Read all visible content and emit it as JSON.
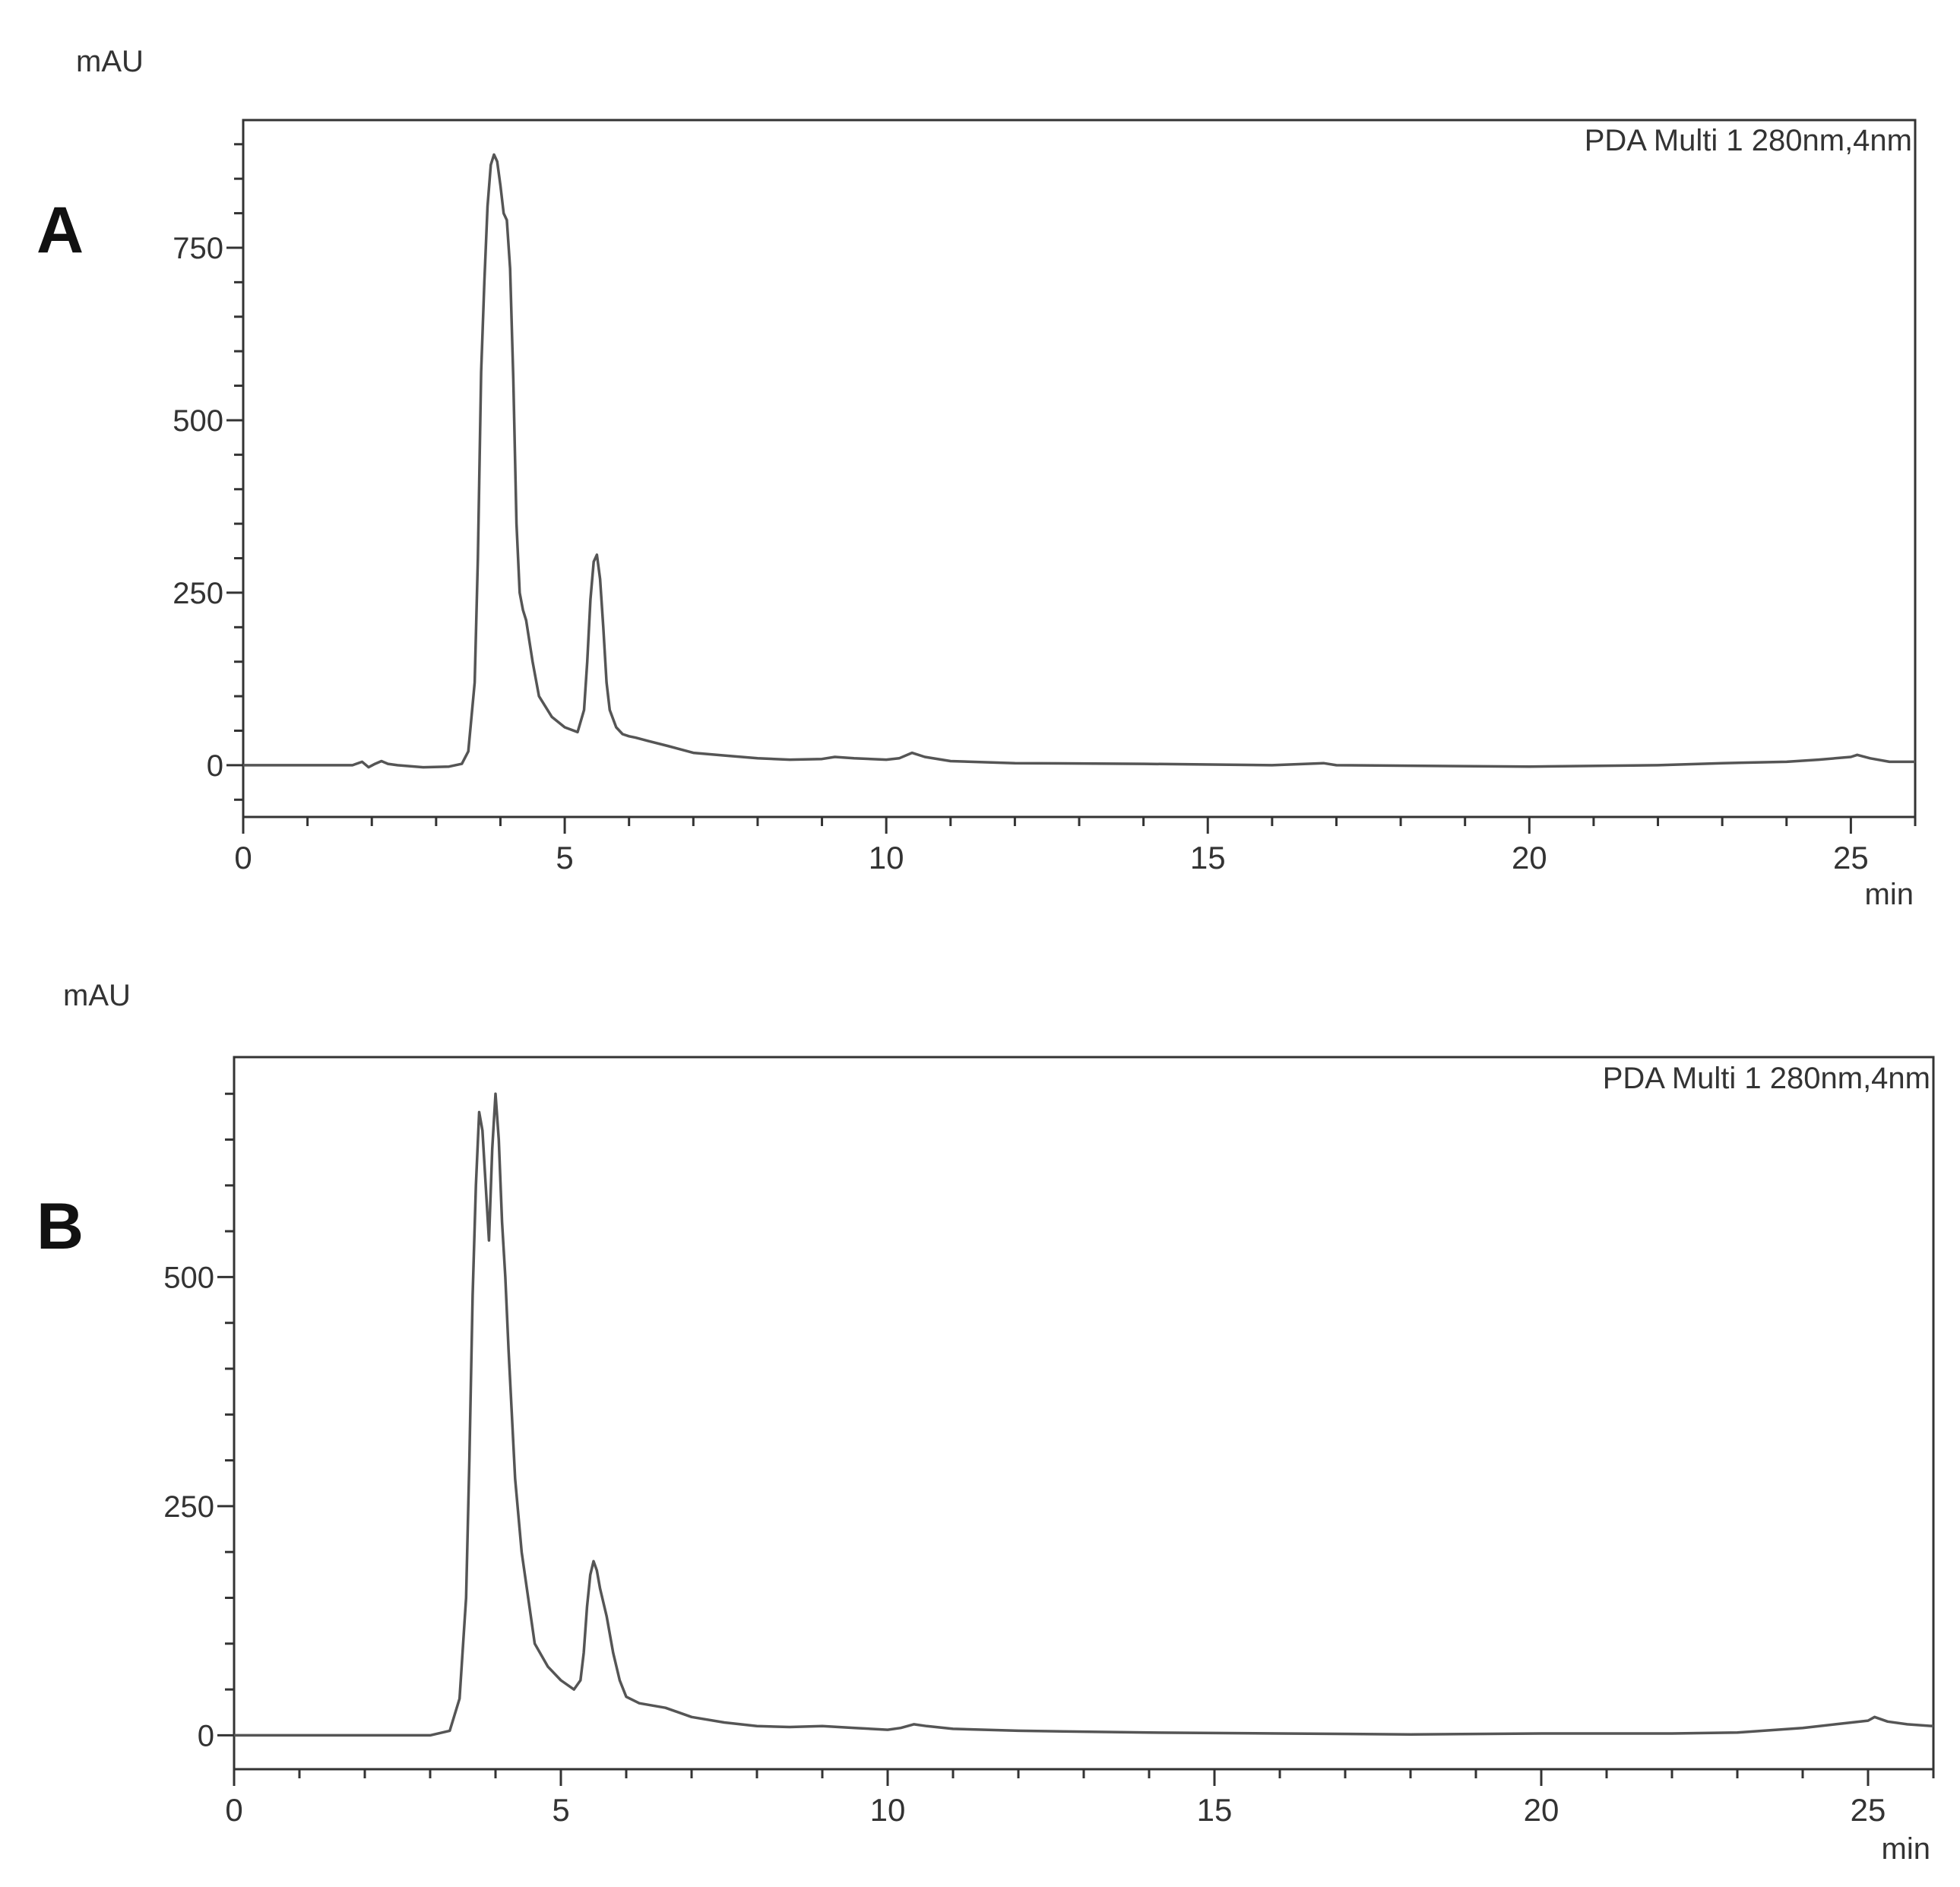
{
  "chart_data": [
    {
      "panel_label": "A",
      "type": "line",
      "ylabel": "mAU",
      "xlabel": "min",
      "legend_text": "PDA Multi 1 280nm,4nm",
      "legend_position": "top-right",
      "xlim": [
        0,
        26
      ],
      "ylim": [
        -75,
        935
      ],
      "xticks": [
        0,
        5,
        10,
        15,
        20,
        25
      ],
      "xtick_labels": [
        "0",
        "5",
        "10",
        "15",
        "20",
        "25"
      ],
      "yticks": [
        0,
        250,
        500,
        750
      ],
      "ytick_labels": [
        "0",
        "250",
        "500",
        "750"
      ],
      "grid": false,
      "line_color": "#555555",
      "series": [
        {
          "x": [
            0,
            1.0,
            1.7,
            1.85,
            1.95,
            2.05,
            2.15,
            2.25,
            2.4,
            2.8,
            3.2,
            3.4,
            3.5,
            3.6,
            3.65,
            3.7,
            3.75,
            3.8,
            3.85,
            3.9,
            3.95,
            4.0,
            4.05,
            4.1,
            4.15,
            4.2,
            4.25,
            4.3,
            4.35,
            4.4,
            4.5,
            4.6,
            4.8,
            5.0,
            5.2,
            5.3,
            5.35,
            5.4,
            5.45,
            5.5,
            5.55,
            5.6,
            5.65,
            5.7,
            5.8,
            5.9,
            6.0,
            6.1,
            6.3,
            6.6,
            7.0,
            7.5,
            8.0,
            8.5,
            9.0,
            9.2,
            9.5,
            10.0,
            10.2,
            10.4,
            10.6,
            11.0,
            12.0,
            14.0,
            16.0,
            16.8,
            17.0,
            20.0,
            22.0,
            23.0,
            24.0,
            24.5,
            25.0,
            25.1,
            25.3,
            25.6,
            26.0
          ],
          "y": [
            0,
            0,
            0,
            5,
            -3,
            2,
            6,
            2,
            0,
            -3,
            -2,
            2,
            20,
            120,
            300,
            570,
            700,
            810,
            870,
            885,
            875,
            840,
            800,
            790,
            720,
            560,
            350,
            250,
            225,
            210,
            150,
            100,
            70,
            55,
            48,
            80,
            150,
            240,
            295,
            305,
            270,
            200,
            120,
            80,
            55,
            45,
            42,
            40,
            35,
            28,
            18,
            14,
            10,
            8,
            9,
            12,
            10,
            8,
            10,
            18,
            12,
            6,
            3,
            2,
            0,
            3,
            0,
            -2,
            0,
            3,
            5,
            8,
            12,
            15,
            10,
            5,
            5
          ]
        }
      ]
    },
    {
      "panel_label": "B",
      "type": "line",
      "ylabel": "mAU",
      "xlabel": "min",
      "legend_text": "PDA Multi 1 280nm,4nm",
      "legend_position": "top-right",
      "xlim": [
        0,
        26
      ],
      "ylim": [
        -37,
        740
      ],
      "xticks": [
        0,
        5,
        10,
        15,
        20,
        25
      ],
      "xtick_labels": [
        "0",
        "5",
        "10",
        "15",
        "20",
        "25"
      ],
      "yticks": [
        0,
        250,
        500
      ],
      "ytick_labels": [
        "0",
        "250",
        "500"
      ],
      "grid": false,
      "line_color": "#555555",
      "series": [
        {
          "x": [
            0,
            1.0,
            2.0,
            3.0,
            3.3,
            3.45,
            3.55,
            3.6,
            3.65,
            3.7,
            3.75,
            3.8,
            3.85,
            3.9,
            3.95,
            4.0,
            4.05,
            4.1,
            4.15,
            4.2,
            4.3,
            4.4,
            4.5,
            4.6,
            4.8,
            5.0,
            5.2,
            5.3,
            5.35,
            5.4,
            5.45,
            5.5,
            5.55,
            5.6,
            5.7,
            5.8,
            5.9,
            6.0,
            6.2,
            6.6,
            7.0,
            7.5,
            8.0,
            8.5,
            9.0,
            9.5,
            10.0,
            10.2,
            10.4,
            10.6,
            11.0,
            12.0,
            14.0,
            16.0,
            18.0,
            20.0,
            22.0,
            23.0,
            24.0,
            24.5,
            25.0,
            25.1,
            25.3,
            25.6,
            26.0
          ],
          "y": [
            0,
            0,
            0,
            0,
            5,
            40,
            150,
            300,
            480,
            600,
            680,
            660,
            600,
            540,
            640,
            700,
            650,
            560,
            500,
            420,
            280,
            200,
            150,
            100,
            75,
            60,
            50,
            60,
            90,
            140,
            175,
            190,
            180,
            160,
            130,
            90,
            60,
            42,
            35,
            30,
            20,
            14,
            10,
            9,
            10,
            8,
            6,
            8,
            12,
            10,
            7,
            5,
            3,
            2,
            1,
            2,
            2,
            3,
            8,
            12,
            16,
            20,
            15,
            12,
            10
          ]
        }
      ]
    }
  ]
}
